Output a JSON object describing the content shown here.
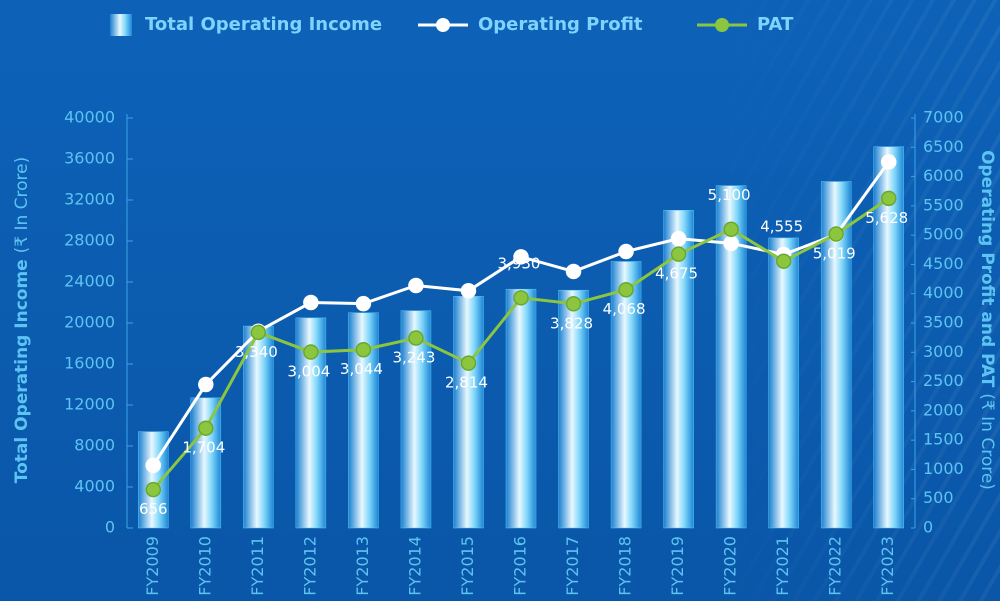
{
  "chart_data": {
    "type": "bar_line",
    "categories": [
      "FY2009",
      "FY2010",
      "FY2011",
      "FY2012",
      "FY2013",
      "FY2014",
      "FY2015",
      "FY2016",
      "FY2017",
      "FY2018",
      "FY2019",
      "FY2020",
      "FY2021",
      "FY2022",
      "FY2023"
    ],
    "series": [
      {
        "name": "Total Operating Income",
        "type": "bar",
        "color": "#5bc8f5",
        "values": [
          9400,
          12700,
          19700,
          20500,
          21000,
          21200,
          22600,
          23300,
          23200,
          26000,
          31000,
          33400,
          28300,
          33800,
          37200
        ]
      },
      {
        "name": "Operating Profit",
        "type": "line",
        "axis": "y2",
        "color": "#ffffff",
        "values": [
          1070,
          2450,
          3360,
          3850,
          3830,
          4140,
          4050,
          4630,
          4380,
          4720,
          4940,
          4860,
          4670,
          5010,
          6250
        ]
      },
      {
        "name": "PAT",
        "type": "line",
        "axis": "y2",
        "color": "#8cc63f",
        "values": [
          656,
          1704,
          3340,
          3004,
          3044,
          3243,
          2814,
          3930,
          3828,
          4068,
          4675,
          5100,
          4555,
          5019,
          5628
        ],
        "value_labels": [
          "656",
          "1,704",
          "3,340",
          "3,004",
          "3,044",
          "3,243",
          "2,814",
          "3,930",
          "3,828",
          "4,068",
          "4,675",
          "5,100",
          "4,555",
          "5,019",
          "5,628"
        ]
      }
    ],
    "ylabel": "Total Operating Income",
    "ylabel_unit": "(₹ In Crore)",
    "y2label": "Operating Profit and PAT",
    "y2label_unit": "(₹ In Crore)",
    "ylim": [
      0,
      40000
    ],
    "yticks": [
      0,
      4000,
      8000,
      12000,
      16000,
      20000,
      24000,
      28000,
      32000,
      36000,
      40000
    ],
    "y2lim": [
      0,
      7000
    ],
    "y2ticks": [
      0,
      500,
      1000,
      1500,
      2000,
      2500,
      3000,
      3500,
      4000,
      4500,
      5000,
      5500,
      6000,
      6500,
      7000
    ],
    "legend": "top"
  }
}
